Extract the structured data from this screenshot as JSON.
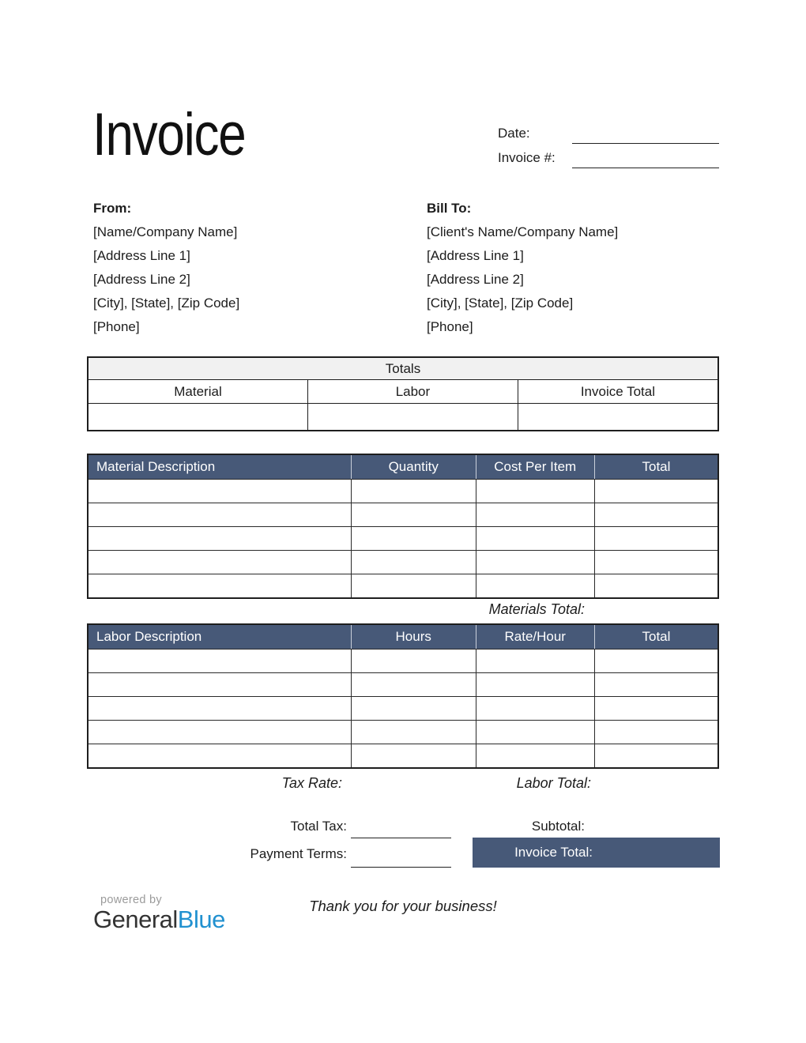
{
  "document": {
    "title": "Invoice",
    "thank_you": "Thank you for your business!"
  },
  "invoice_meta": {
    "date_label": "Date:",
    "date_value": "",
    "invoice_number_label": "Invoice #:",
    "invoice_number_value": ""
  },
  "from": {
    "heading": "From:",
    "lines": [
      "[Name/Company Name]",
      "[Address Line 1]",
      "[Address Line 2]",
      "[City], [State], [Zip Code]",
      "[Phone]"
    ]
  },
  "bill_to": {
    "heading": "Bill To:",
    "lines": [
      "[Client's Name/Company Name]",
      "[Address Line 1]",
      "[Address Line 2]",
      "[City], [State], [Zip Code]",
      "[Phone]"
    ]
  },
  "totals_table": {
    "title": "Totals",
    "columns": [
      "Material",
      "Labor",
      "Invoice Total"
    ],
    "values": [
      "",
      "",
      ""
    ]
  },
  "material_table": {
    "headers": [
      "Material Description",
      "Quantity",
      "Cost Per Item",
      "Total"
    ],
    "rows": [
      [
        "",
        "",
        "",
        ""
      ],
      [
        "",
        "",
        "",
        ""
      ],
      [
        "",
        "",
        "",
        ""
      ],
      [
        "",
        "",
        "",
        ""
      ],
      [
        "",
        "",
        "",
        ""
      ]
    ],
    "footer_label": "Materials Total:",
    "footer_value": ""
  },
  "labor_table": {
    "headers": [
      "Labor Description",
      "Hours",
      "Rate/Hour",
      "Total"
    ],
    "rows": [
      [
        "",
        "",
        "",
        ""
      ],
      [
        "",
        "",
        "",
        ""
      ],
      [
        "",
        "",
        "",
        ""
      ],
      [
        "",
        "",
        "",
        ""
      ],
      [
        "",
        "",
        "",
        ""
      ]
    ],
    "tax_rate_label": "Tax Rate:",
    "tax_rate_value": "",
    "footer_label": "Labor Total:",
    "footer_value": ""
  },
  "summary": {
    "total_tax_label": "Total Tax:",
    "total_tax_value": "",
    "payment_terms_label": "Payment Terms:",
    "payment_terms_value": "",
    "subtotal_label": "Subtotal:",
    "subtotal_value": "",
    "invoice_total_label": "Invoice Total:",
    "invoice_total_value": ""
  },
  "footer": {
    "powered_by": "powered by",
    "brand_general": "General",
    "brand_blue": "Blue"
  },
  "colors": {
    "accent": "#475978",
    "brand_blue": "#2191d0",
    "totals_header_bg": "#f1f1f1",
    "border": "#1e1e1e"
  }
}
